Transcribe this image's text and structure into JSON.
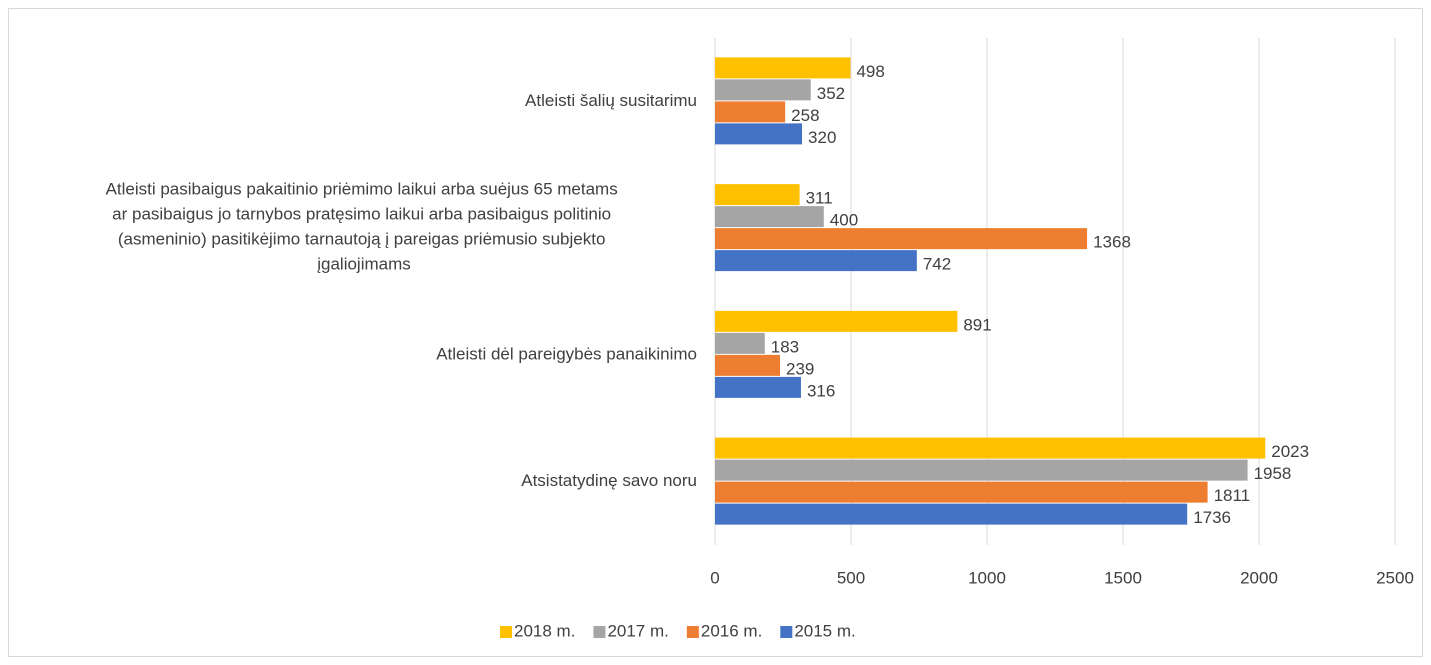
{
  "chart_data": {
    "type": "barh",
    "categories": [
      "Atleisti šalių susitarimu",
      "Atleisti pasibaigus pakaitinio priėmimo laikui arba suėjus 65 metams ar pasibaigus jo tarnybos pratęsimo laikui arba pasibaigus politinio (asmeninio) pasitikėjimo tarnautoją į pareigas priėmusio subjekto įgaliojimams",
      "Atleisti dėl pareigybės panaikinimo",
      "Atsistatydinę savo noru"
    ],
    "series": [
      {
        "name": "2018 m.",
        "color": "#FFC000",
        "values": [
          498,
          311,
          891,
          2023
        ]
      },
      {
        "name": "2017 m.",
        "color": "#A5A5A5",
        "values": [
          352,
          400,
          183,
          1958
        ]
      },
      {
        "name": "2016 m.",
        "color": "#ED7D31",
        "values": [
          258,
          1368,
          239,
          1811
        ]
      },
      {
        "name": "2015 m.",
        "color": "#4472C4",
        "values": [
          320,
          742,
          316,
          1736
        ]
      }
    ],
    "xlim": [
      0,
      2500
    ],
    "xticks": [
      0,
      500,
      1000,
      1500,
      2000,
      2500
    ],
    "grid": true,
    "legend": "bottom"
  }
}
